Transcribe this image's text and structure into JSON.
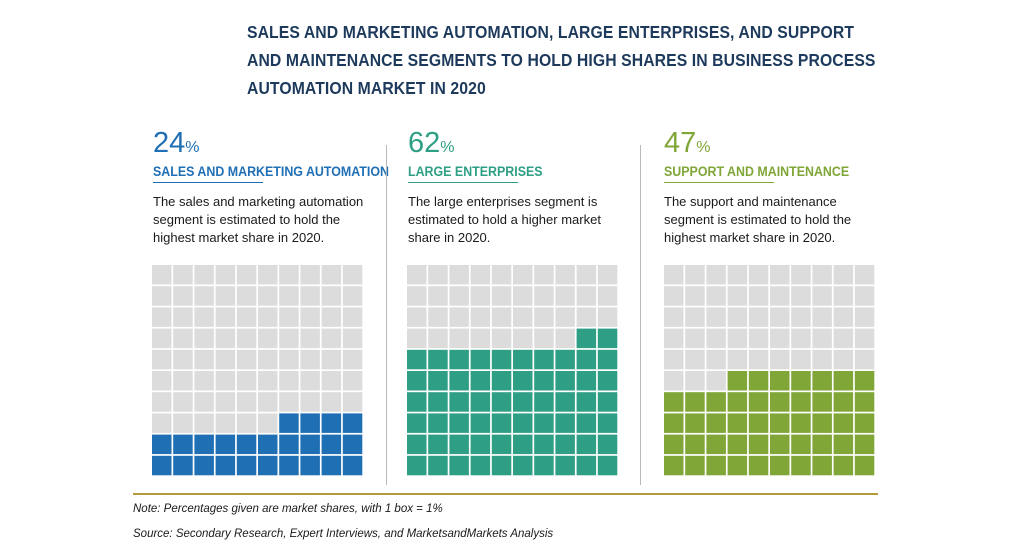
{
  "title_lines": [
    "SALES AND MARKETING AUTOMATION, LARGE ENTERPRISES, AND SUPPORT",
    "AND MAINTENANCE SEGMENTS TO HOLD HIGH SHARES IN BUSINESS PROCESS",
    "AUTOMATION MARKET IN 2020"
  ],
  "panels": [
    {
      "value": "24",
      "unit": "%",
      "label": "SALES AND MARKETING AUTOMATION",
      "color": "#1f6fb5",
      "desc_lines": [
        "The sales and marketing automation",
        "segment is estimated to hold the",
        "highest market share in 2020."
      ]
    },
    {
      "value": "62",
      "unit": "%",
      "label": "LARGE ENTERPRISES",
      "color": "#2e9e84",
      "desc_lines": [
        "The large enterprises segment is",
        "estimated to hold a higher market",
        "share in 2020."
      ]
    },
    {
      "value": "47",
      "unit": "%",
      "label": "SUPPORT AND MAINTENANCE",
      "color": "#7fa637",
      "desc_lines": [
        "The support and maintenance",
        "segment is estimated to hold the",
        "highest market share in 2020."
      ]
    }
  ],
  "chart_data": {
    "type": "waffle",
    "grid": "10x10",
    "box_value_percent": 1,
    "series": [
      {
        "name": "SALES AND MARKETING AUTOMATION",
        "value": 24
      },
      {
        "name": "LARGE ENTERPRISES",
        "value": 62
      },
      {
        "name": "SUPPORT AND MAINTENANCE",
        "value": 47
      }
    ],
    "empty_color": "#dcdcdc"
  },
  "note": "Note: Percentages given are market shares, with 1 box = 1%",
  "source": "Source: Secondary Research, Expert Interviews, and MarketsandMarkets Analysis"
}
